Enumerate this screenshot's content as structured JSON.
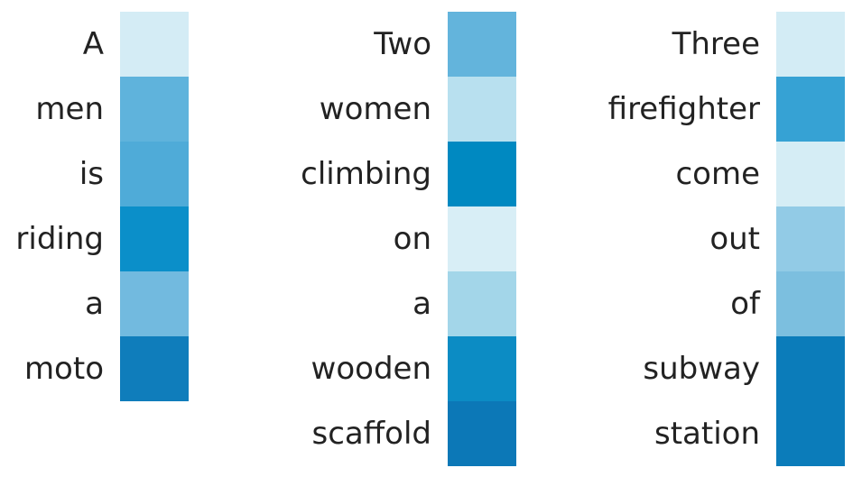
{
  "chart_data": [
    {
      "type": "heatmap",
      "rows": [
        "A",
        "men",
        "is",
        "riding",
        "a",
        "moto"
      ],
      "colors": [
        "#d4ecf5",
        "#5fb3dc",
        "#4fabd8",
        "#0b8fc9",
        "#72badf",
        "#0f7dbb"
      ]
    },
    {
      "type": "heatmap",
      "rows": [
        "Two",
        "women",
        "climbing",
        "on",
        "a",
        "wooden",
        "scaffold"
      ],
      "colors": [
        "#63b4dc",
        "#b8e0ef",
        "#0089c1",
        "#d8eef6",
        "#a3d6e9",
        "#0c8cc4",
        "#0c78b7"
      ]
    },
    {
      "type": "heatmap",
      "rows": [
        "Three",
        "firefighter",
        "come",
        "out",
        "of",
        "subway",
        "station"
      ],
      "colors": [
        "#d3ecf5",
        "#36a2d4",
        "#d5edf5",
        "#92cbe6",
        "#7cbfdf",
        "#0b7cba",
        "#0b7cba"
      ]
    }
  ]
}
